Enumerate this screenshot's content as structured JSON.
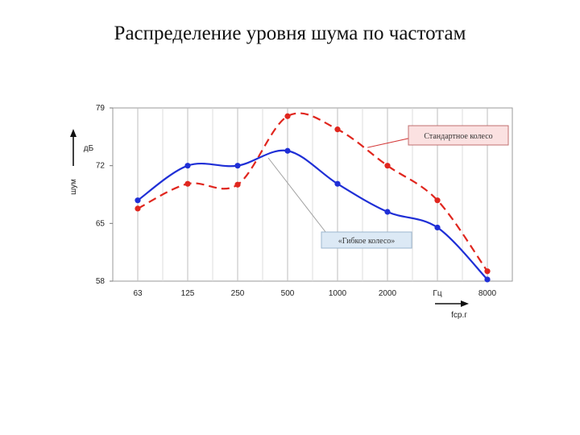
{
  "slide": {
    "title": "Распределение уровня шума по частотам"
  },
  "chart_data": {
    "type": "line",
    "title": "Распределение уровня шума по частотам",
    "categories": [
      "63",
      "125",
      "250",
      "500",
      "1000",
      "2000",
      "Гц",
      "8000"
    ],
    "ylabel": "шум",
    "yunit": "дБ",
    "xlabel": "fср.г",
    "ylim": [
      58,
      79
    ],
    "yticks": [
      58,
      65,
      72,
      79
    ],
    "grid": "vertical",
    "series": [
      {
        "name": "«Гибкое колесо»",
        "color": "#1f2fd6",
        "style": "solid",
        "values": [
          67.8,
          72.0,
          72.0,
          73.8,
          69.8,
          66.4,
          64.5,
          58.2
        ]
      },
      {
        "name": "Стандартное колесо",
        "color": "#e0261e",
        "style": "dashed",
        "values": [
          66.8,
          69.8,
          69.7,
          78.0,
          76.4,
          72.0,
          67.8,
          59.2
        ]
      }
    ],
    "annotations": [
      {
        "text": "Стандартное колесо",
        "series": 1,
        "category_index": 4.6
      },
      {
        "text": "«Гибкое колесо»",
        "series": 0,
        "category_index": 2.6
      }
    ]
  }
}
